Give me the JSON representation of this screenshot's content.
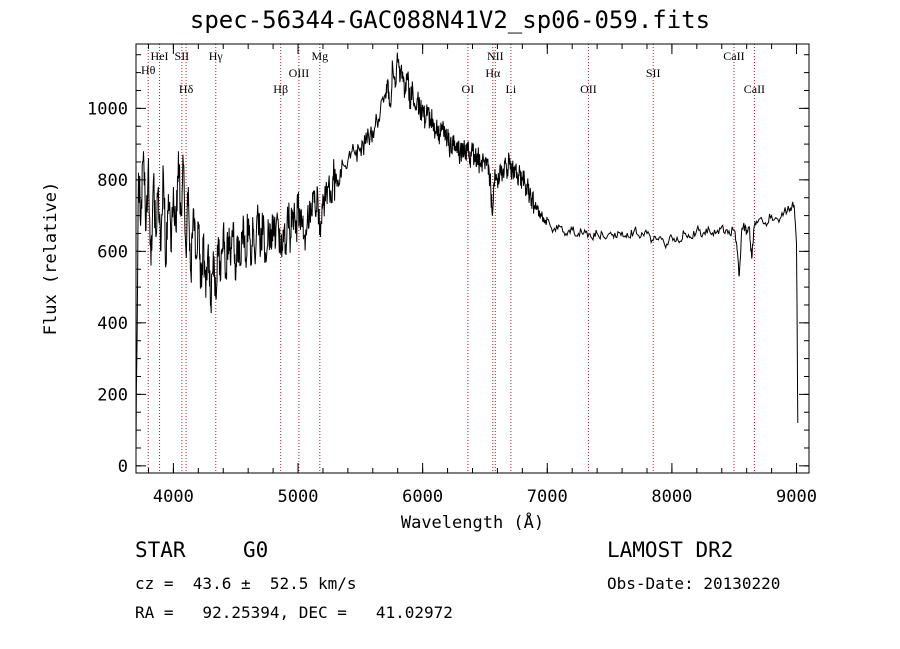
{
  "chart_data": {
    "type": "line",
    "title": "spec-56344-GAC088N41V2_sp06-059.fits",
    "xlabel": "Wavelength (Å)",
    "ylabel": "Flux (relative)",
    "xlim": [
      3700,
      9100
    ],
    "ylim": [
      -20,
      1180
    ],
    "x_ticks": [
      4000,
      5000,
      6000,
      7000,
      8000,
      9000
    ],
    "y_ticks": [
      0,
      200,
      400,
      600,
      800,
      1000
    ],
    "grid": false,
    "series": [
      {
        "points": [
          [
            3700,
            40
          ],
          [
            3720,
            820
          ],
          [
            3740,
            700
          ],
          [
            3760,
            880
          ],
          [
            3780,
            660
          ],
          [
            3800,
            860
          ],
          [
            3820,
            560
          ],
          [
            3840,
            800
          ],
          [
            3860,
            640
          ],
          [
            3880,
            780
          ],
          [
            3900,
            600
          ],
          [
            3920,
            820
          ],
          [
            3940,
            560
          ],
          [
            3960,
            760
          ],
          [
            3980,
            600
          ],
          [
            4000,
            780
          ],
          [
            4020,
            660
          ],
          [
            4040,
            880
          ],
          [
            4060,
            700
          ],
          [
            4080,
            840
          ],
          [
            4100,
            600
          ],
          [
            4120,
            780
          ],
          [
            4140,
            540
          ],
          [
            4160,
            720
          ],
          [
            4180,
            580
          ],
          [
            4200,
            680
          ],
          [
            4220,
            500
          ],
          [
            4240,
            640
          ],
          [
            4260,
            470
          ],
          [
            4280,
            620
          ],
          [
            4300,
            450
          ],
          [
            4320,
            600
          ],
          [
            4340,
            470
          ],
          [
            4360,
            640
          ],
          [
            4380,
            520
          ],
          [
            4400,
            660
          ],
          [
            4420,
            540
          ],
          [
            4440,
            640
          ],
          [
            4460,
            560
          ],
          [
            4480,
            680
          ],
          [
            4500,
            520
          ],
          [
            4520,
            640
          ],
          [
            4540,
            560
          ],
          [
            4560,
            700
          ],
          [
            4580,
            580
          ],
          [
            4600,
            680
          ],
          [
            4620,
            560
          ],
          [
            4640,
            660
          ],
          [
            4660,
            590
          ],
          [
            4680,
            700
          ],
          [
            4700,
            600
          ],
          [
            4720,
            680
          ],
          [
            4740,
            590
          ],
          [
            4760,
            690
          ],
          [
            4780,
            610
          ],
          [
            4800,
            700
          ],
          [
            4820,
            620
          ],
          [
            4840,
            690
          ],
          [
            4860,
            600
          ],
          [
            4880,
            660
          ],
          [
            4900,
            620
          ],
          [
            4920,
            700
          ],
          [
            4940,
            640
          ],
          [
            4960,
            710
          ],
          [
            4980,
            650
          ],
          [
            5000,
            720
          ],
          [
            5020,
            660
          ],
          [
            5040,
            700
          ],
          [
            5060,
            640
          ],
          [
            5080,
            730
          ],
          [
            5100,
            680
          ],
          [
            5120,
            760
          ],
          [
            5140,
            700
          ],
          [
            5160,
            740
          ],
          [
            5180,
            640
          ],
          [
            5200,
            760
          ],
          [
            5220,
            740
          ],
          [
            5240,
            780
          ],
          [
            5260,
            760
          ],
          [
            5280,
            810
          ],
          [
            5300,
            790
          ],
          [
            5340,
            830
          ],
          [
            5380,
            840
          ],
          [
            5420,
            860
          ],
          [
            5460,
            870
          ],
          [
            5500,
            890
          ],
          [
            5540,
            900
          ],
          [
            5580,
            930
          ],
          [
            5620,
            950
          ],
          [
            5660,
            990
          ],
          [
            5700,
            1040
          ],
          [
            5720,
            1080
          ],
          [
            5740,
            1010
          ],
          [
            5760,
            1120
          ],
          [
            5780,
            1060
          ],
          [
            5800,
            1140
          ],
          [
            5820,
            1080
          ],
          [
            5840,
            1100
          ],
          [
            5860,
            1040
          ],
          [
            5880,
            1080
          ],
          [
            5900,
            1020
          ],
          [
            5920,
            1060
          ],
          [
            5940,
            1000
          ],
          [
            5960,
            1030
          ],
          [
            5980,
            980
          ],
          [
            6000,
            1010
          ],
          [
            6020,
            960
          ],
          [
            6040,
            990
          ],
          [
            6060,
            950
          ],
          [
            6080,
            970
          ],
          [
            6100,
            930
          ],
          [
            6120,
            950
          ],
          [
            6140,
            920
          ],
          [
            6160,
            940
          ],
          [
            6180,
            910
          ],
          [
            6200,
            920
          ],
          [
            6220,
            890
          ],
          [
            6240,
            910
          ],
          [
            6260,
            880
          ],
          [
            6280,
            900
          ],
          [
            6300,
            870
          ],
          [
            6320,
            890
          ],
          [
            6340,
            870
          ],
          [
            6360,
            880
          ],
          [
            6380,
            860
          ],
          [
            6400,
            880
          ],
          [
            6420,
            850
          ],
          [
            6440,
            870
          ],
          [
            6460,
            840
          ],
          [
            6480,
            860
          ],
          [
            6500,
            830
          ],
          [
            6520,
            850
          ],
          [
            6540,
            810
          ],
          [
            6560,
            700
          ],
          [
            6580,
            830
          ],
          [
            6600,
            800
          ],
          [
            6620,
            840
          ],
          [
            6640,
            810
          ],
          [
            6660,
            850
          ],
          [
            6680,
            830
          ],
          [
            6700,
            860
          ],
          [
            6720,
            820
          ],
          [
            6740,
            840
          ],
          [
            6760,
            810
          ],
          [
            6780,
            820
          ],
          [
            6800,
            800
          ],
          [
            6820,
            790
          ],
          [
            6840,
            780
          ],
          [
            6860,
            760
          ],
          [
            6880,
            750
          ],
          [
            6900,
            730
          ],
          [
            6920,
            720
          ],
          [
            6940,
            700
          ],
          [
            6960,
            700
          ],
          [
            6980,
            680
          ],
          [
            7000,
            690
          ],
          [
            7050,
            660
          ],
          [
            7100,
            670
          ],
          [
            7150,
            650
          ],
          [
            7200,
            660
          ],
          [
            7250,
            650
          ],
          [
            7300,
            660
          ],
          [
            7350,
            640
          ],
          [
            7400,
            650
          ],
          [
            7450,
            640
          ],
          [
            7500,
            650
          ],
          [
            7550,
            640
          ],
          [
            7600,
            655
          ],
          [
            7650,
            640
          ],
          [
            7700,
            660
          ],
          [
            7750,
            640
          ],
          [
            7800,
            650
          ],
          [
            7850,
            630
          ],
          [
            7900,
            640
          ],
          [
            7950,
            610
          ],
          [
            8000,
            640
          ],
          [
            8050,
            630
          ],
          [
            8100,
            650
          ],
          [
            8150,
            640
          ],
          [
            8200,
            660
          ],
          [
            8250,
            650
          ],
          [
            8300,
            660
          ],
          [
            8350,
            650
          ],
          [
            8400,
            670
          ],
          [
            8450,
            650
          ],
          [
            8500,
            660
          ],
          [
            8520,
            620
          ],
          [
            8540,
            530
          ],
          [
            8560,
            660
          ],
          [
            8580,
            670
          ],
          [
            8600,
            650
          ],
          [
            8620,
            670
          ],
          [
            8640,
            580
          ],
          [
            8660,
            670
          ],
          [
            8700,
            690
          ],
          [
            8750,
            680
          ],
          [
            8800,
            700
          ],
          [
            8850,
            690
          ],
          [
            8900,
            710
          ],
          [
            8950,
            720
          ],
          [
            8980,
            730
          ],
          [
            9000,
            620
          ],
          [
            9010,
            120
          ]
        ]
      }
    ],
    "lines": [
      {
        "label": "Hθ",
        "x": 3798
      },
      {
        "label": "HeI",
        "x": 3889
      },
      {
        "label": "Hδ",
        "x": 4102
      },
      {
        "label": "SII",
        "x": 4068
      },
      {
        "label": "Hγ",
        "x": 4340
      },
      {
        "label": "Hβ",
        "x": 4861
      },
      {
        "label": "OIII",
        "x": 5007
      },
      {
        "label": "Mg",
        "x": 5175
      },
      {
        "label": "OI",
        "x": 6363
      },
      {
        "label": "NII",
        "x": 6583
      },
      {
        "label": "Hα",
        "x": 6563
      },
      {
        "label": "Li",
        "x": 6708
      },
      {
        "label": "OII",
        "x": 7330
      },
      {
        "label": "SII",
        "x": 7850
      },
      {
        "label": "CaII",
        "x": 8498
      },
      {
        "label": "CaII",
        "x": 8662
      }
    ]
  },
  "info": {
    "class_label": "STAR",
    "subclass": "G0",
    "survey": "LAMOST DR2",
    "redshift_text": "cz =  43.6 ±  52.5 km/s",
    "obs_date": "Obs-Date: 20130220",
    "coords_text": "RA =   92.25394, DEC =   41.02972"
  },
  "colors": {
    "spectrum": "#000000",
    "line_markers": "#b22222",
    "axes": "#000000"
  }
}
